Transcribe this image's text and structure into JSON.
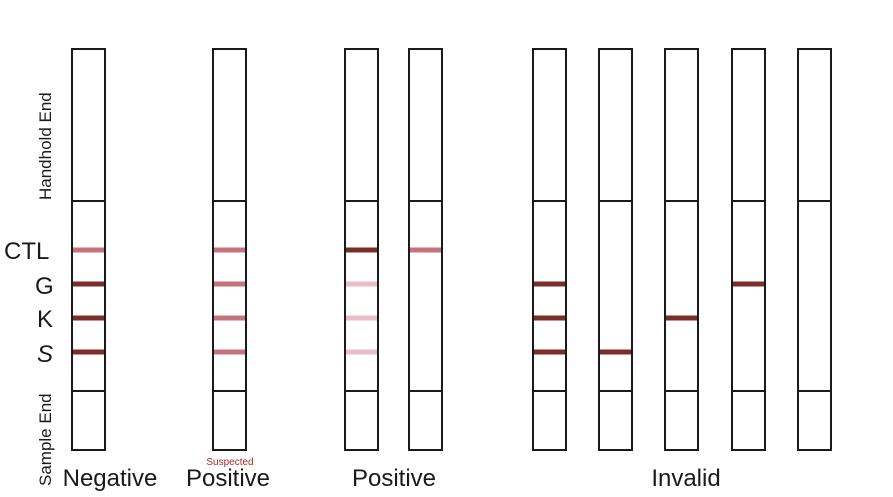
{
  "line_labels": {
    "ctl": "CTL",
    "g": "G",
    "k": "K",
    "s": "S"
  },
  "end_labels": {
    "handhold": "Handhold End",
    "sample": "Sample End"
  },
  "groups": {
    "negative": "Negative",
    "positive_suspected": "Positive",
    "positive": "Positive",
    "invalid": "Invalid"
  },
  "suspected_note": "Suspected",
  "colors": {
    "outline": "#1a1a1a",
    "band_dark": "#7a2e2a",
    "band_medium": "#c4727e",
    "band_faint": "#e9bcc6",
    "note_text": "#b0262b"
  },
  "strips": [
    {
      "group": "Negative",
      "bands": {
        "CTL": "medium",
        "G": "dark",
        "K": "dark",
        "S": "dark"
      }
    },
    {
      "group": "Suspected Positive",
      "bands": {
        "CTL": "medium",
        "G": "medium",
        "K": "medium",
        "S": "medium"
      }
    },
    {
      "group": "Positive",
      "bands": {
        "CTL": "dark",
        "G": "faint",
        "K": "faint",
        "S": "faint"
      }
    },
    {
      "group": "Positive",
      "bands": {
        "CTL": "medium"
      }
    },
    {
      "group": "Invalid",
      "bands": {
        "G": "dark",
        "K": "dark",
        "S": "dark"
      }
    },
    {
      "group": "Invalid",
      "bands": {
        "S": "dark"
      }
    },
    {
      "group": "Invalid",
      "bands": {
        "K": "dark"
      }
    },
    {
      "group": "Invalid",
      "bands": {
        "G": "dark"
      }
    },
    {
      "group": "Invalid",
      "bands": {}
    }
  ]
}
